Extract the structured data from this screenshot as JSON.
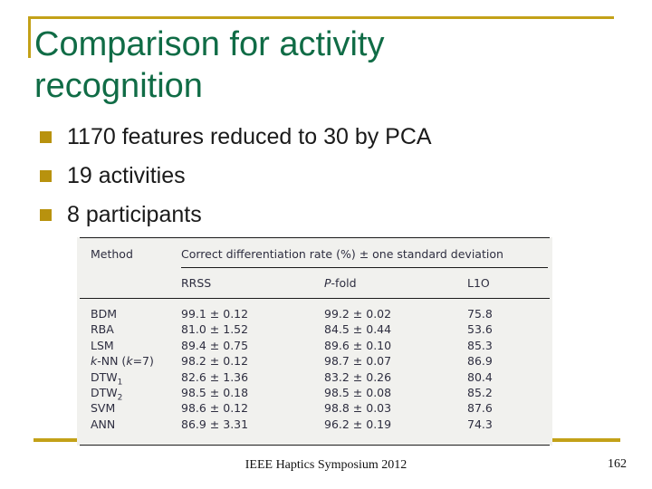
{
  "slide": {
    "title": "Comparison for activity recognition",
    "bullets": [
      "1170 features reduced to 30 by PCA",
      "19 activities",
      "8 participants"
    ],
    "table": {
      "method_header": "Method",
      "span_header": "Correct differentiation rate (%) ± one standard deviation",
      "subheaders": [
        [
          {
            "t": "RRSS"
          }
        ],
        [
          {
            "t": "P",
            "i": true
          },
          {
            "t": "-fold"
          }
        ],
        [
          {
            "t": "L1O"
          }
        ]
      ],
      "rows": [
        {
          "method": [
            {
              "t": "BDM"
            }
          ],
          "rrss": "99.1 ± 0.12",
          "pfold": "99.2 ± 0.02",
          "l1o": "75.8"
        },
        {
          "method": [
            {
              "t": "RBA"
            }
          ],
          "rrss": "81.0 ± 1.52",
          "pfold": "84.5 ± 0.44",
          "l1o": "53.6"
        },
        {
          "method": [
            {
              "t": "LSM"
            }
          ],
          "rrss": "89.4 ± 0.75",
          "pfold": "89.6 ± 0.10",
          "l1o": "85.3"
        },
        {
          "method": [
            {
              "t": "k",
              "i": true
            },
            {
              "t": "-NN ("
            },
            {
              "t": "k",
              "i": true
            },
            {
              "t": "=7)"
            }
          ],
          "rrss": "98.2 ± 0.12",
          "pfold": "98.7 ± 0.07",
          "l1o": "86.9"
        },
        {
          "method": [
            {
              "t": "DTW"
            },
            {
              "t": "1",
              "s": true
            }
          ],
          "rrss": "82.6 ± 1.36",
          "pfold": "83.2 ± 0.26",
          "l1o": "80.4"
        },
        {
          "method": [
            {
              "t": "DTW"
            },
            {
              "t": "2",
              "s": true
            }
          ],
          "rrss": "98.5 ± 0.18",
          "pfold": "98.5 ± 0.08",
          "l1o": "85.2"
        },
        {
          "method": [
            {
              "t": "SVM"
            }
          ],
          "rrss": "98.6 ± 0.12",
          "pfold": "98.8 ± 0.03",
          "l1o": "87.6"
        },
        {
          "method": [
            {
              "t": "ANN"
            }
          ],
          "rrss": "86.9 ± 3.31",
          "pfold": "96.2 ± 0.19",
          "l1o": "74.3"
        }
      ]
    },
    "footer": {
      "conference": "IEEE Haptics Symposium 2012",
      "page_number": "162"
    },
    "colors": {
      "accent_gold": "#C3A118",
      "bullet_gold": "#B8920E",
      "title_green": "#106C46",
      "table_text": "#2E2E40",
      "table_bg": "#F1F1EE"
    }
  }
}
